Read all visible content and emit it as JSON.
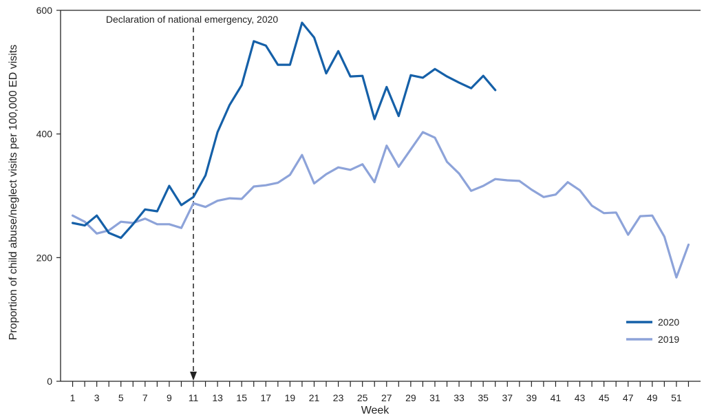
{
  "chart_data": {
    "type": "line",
    "title": "",
    "xlabel": "Week",
    "ylabel": "Proportion of child abuse/neglect visits per 100,000 ED visits",
    "xlim": [
      0,
      53
    ],
    "ylim": [
      0,
      600
    ],
    "yticks": [
      0,
      200,
      400,
      600
    ],
    "xticks": [
      1,
      3,
      5,
      7,
      9,
      11,
      13,
      15,
      17,
      19,
      21,
      23,
      25,
      27,
      29,
      31,
      33,
      35,
      37,
      39,
      41,
      43,
      45,
      47,
      49,
      51
    ],
    "grid": false,
    "legend_position": "bottom-right",
    "annotation": {
      "text": "Declaration of national emergency, 2020",
      "x": 11
    },
    "series": [
      {
        "name": "2020",
        "color": "#1560a8",
        "x": [
          1,
          2,
          3,
          4,
          5,
          6,
          7,
          8,
          9,
          10,
          11,
          12,
          13,
          14,
          15,
          16,
          17,
          18,
          19,
          20,
          21,
          22,
          23,
          24,
          25,
          26,
          27,
          28,
          29,
          30,
          31,
          32,
          33,
          34,
          35,
          36
        ],
        "values": [
          256,
          252,
          268,
          240,
          232,
          254,
          278,
          275,
          316,
          285,
          298,
          333,
          403,
          447,
          479,
          550,
          543,
          512,
          512,
          580,
          556,
          498,
          534,
          493,
          494,
          424,
          476,
          429,
          495,
          491,
          505,
          493,
          483,
          474,
          494,
          471
        ]
      },
      {
        "name": "2019",
        "color": "#8da3d9",
        "x": [
          1,
          2,
          3,
          4,
          5,
          6,
          7,
          8,
          9,
          10,
          11,
          12,
          13,
          14,
          15,
          16,
          17,
          18,
          19,
          20,
          21,
          22,
          23,
          24,
          25,
          26,
          27,
          28,
          29,
          30,
          31,
          32,
          33,
          34,
          35,
          36,
          37,
          38,
          39,
          40,
          41,
          42,
          43,
          44,
          45,
          46,
          47,
          48,
          49,
          50,
          51,
          52
        ],
        "values": [
          268,
          258,
          239,
          244,
          258,
          256,
          263,
          254,
          254,
          248,
          288,
          282,
          292,
          296,
          295,
          315,
          317,
          321,
          334,
          366,
          320,
          335,
          346,
          342,
          351,
          322,
          381,
          347,
          375,
          403,
          394,
          355,
          336,
          308,
          316,
          327,
          325,
          324,
          310,
          298,
          302,
          322,
          309,
          284,
          272,
          273,
          237,
          267,
          268,
          234,
          168,
          221
        ]
      }
    ]
  }
}
